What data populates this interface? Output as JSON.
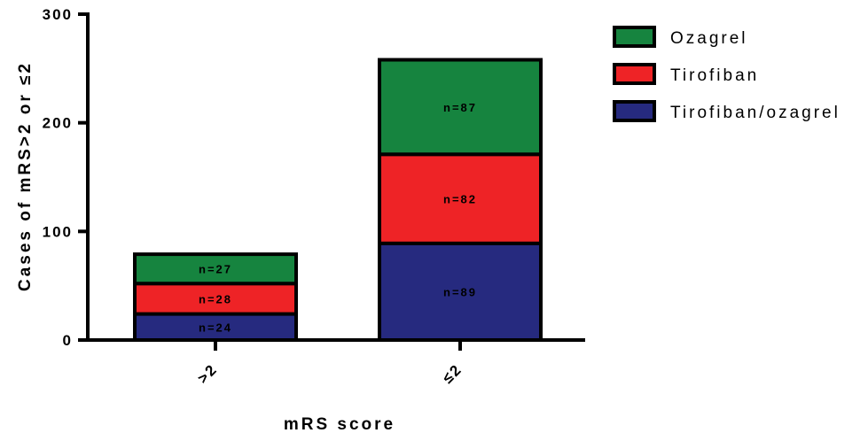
{
  "chart_data": {
    "type": "bar",
    "stacked": true,
    "categories": [
      ">2",
      "≤2"
    ],
    "series": [
      {
        "name": "Tirofiban/ozagrel",
        "color": "#262a7f",
        "values": [
          24,
          89
        ],
        "labels": [
          "n=24",
          "n=89"
        ]
      },
      {
        "name": "Tirofiban",
        "color": "#ee2326",
        "values": [
          28,
          82
        ],
        "labels": [
          "n=28",
          "n=82"
        ]
      },
      {
        "name": "Ozagrel",
        "color": "#16843f",
        "values": [
          27,
          87
        ],
        "labels": [
          "n=27",
          "n=87"
        ]
      }
    ],
    "legend_order": [
      "Ozagrel",
      "Tirofiban",
      "Tirofiban/ozagrel"
    ],
    "legend_position": "top-right",
    "xlabel": "mRS score",
    "ylabel": "Cases of mRS>2 or ≤2",
    "ylim": [
      0,
      300
    ],
    "yticks": [
      "0",
      "100",
      "200",
      "300"
    ],
    "grid": false
  }
}
